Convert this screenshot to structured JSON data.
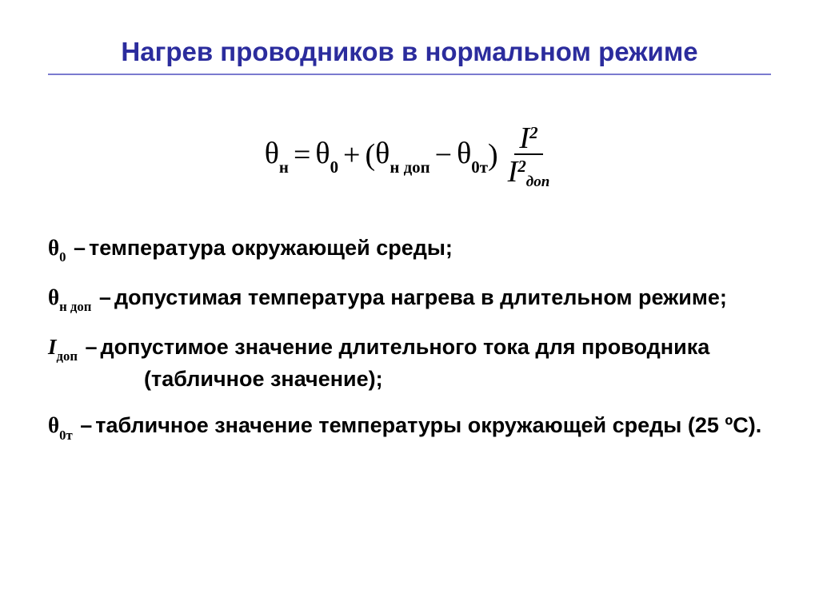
{
  "colors": {
    "title": "#2b2c9d",
    "rule": "#7a7acf",
    "text": "#000000",
    "background": "#ffffff"
  },
  "title": "Нагрев проводников в нормальном режиме",
  "formula": {
    "lhs_sym": "θ",
    "lhs_sub": "н",
    "eq": "=",
    "t1_sym": "θ",
    "t1_sub": "0",
    "plus": "+",
    "lpar": "(",
    "t2_sym": "θ",
    "t2_sub": "н доп",
    "minus": "−",
    "t3_sym": "θ",
    "t3_sub": "0т",
    "rpar": ")",
    "frac_num_sym": "I",
    "frac_num_exp": "2",
    "frac_den_sym": "I",
    "frac_den_exp": "2",
    "frac_den_sub": "доп"
  },
  "definitions": [
    {
      "symbol": "θ",
      "subscript": "0",
      "italic": false,
      "dash": "–",
      "text": "температура окружающей среды;"
    },
    {
      "symbol": "θ",
      "subscript": "н доп",
      "italic": false,
      "dash": "–",
      "text": "допустимая температура нагрева в длительном режиме;"
    },
    {
      "symbol": "I",
      "subscript": "доп",
      "italic": true,
      "dash": "–",
      "text": "допустимое значение длительного тока для проводника (табличное значение);"
    },
    {
      "symbol": "θ",
      "subscript": "0т",
      "italic": false,
      "dash": "–",
      "text": "табличное значение температуры окружающей среды (25 ºС)."
    }
  ]
}
